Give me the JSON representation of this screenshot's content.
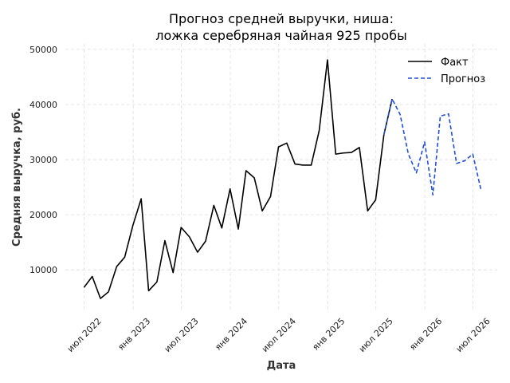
{
  "chart_data": {
    "type": "line",
    "title_line1": "Прогноз средней выручки, ниша:",
    "title_line2": "ложка серебряная чайная 925 пробы",
    "xlabel": "Дата",
    "ylabel": "Средняя выручка, руб.",
    "ylim": [
      2500,
      51000
    ],
    "yticks": [
      10000,
      20000,
      30000,
      40000,
      50000
    ],
    "xlim": [
      "2022-04-21",
      "2026-09-30"
    ],
    "xticks": [
      {
        "date": "2022-07-01",
        "label": "июл 2022"
      },
      {
        "date": "2023-01-01",
        "label": "янв 2023"
      },
      {
        "date": "2023-07-01",
        "label": "июл 2023"
      },
      {
        "date": "2024-01-01",
        "label": "янв 2024"
      },
      {
        "date": "2024-07-01",
        "label": "июл 2024"
      },
      {
        "date": "2025-01-01",
        "label": "янв 2025"
      },
      {
        "date": "2025-07-01",
        "label": "июл 2025"
      },
      {
        "date": "2026-01-01",
        "label": "янв 2026"
      },
      {
        "date": "2026-07-01",
        "label": "июл 2026"
      }
    ],
    "grid": true,
    "legend_position": "top-right",
    "series": [
      {
        "name": "Факт",
        "style": "solid",
        "color": "#000000",
        "x": [
          "2022-06-30",
          "2022-07-31",
          "2022-08-31",
          "2022-09-30",
          "2022-10-31",
          "2022-11-30",
          "2022-12-31",
          "2023-01-31",
          "2023-02-28",
          "2023-03-31",
          "2023-04-30",
          "2023-05-31",
          "2023-06-30",
          "2023-07-31",
          "2023-08-31",
          "2023-09-30",
          "2023-10-31",
          "2023-11-30",
          "2023-12-31",
          "2024-01-31",
          "2024-02-29",
          "2024-03-31",
          "2024-04-30",
          "2024-05-31",
          "2024-06-30",
          "2024-07-31",
          "2024-08-31",
          "2024-09-30",
          "2024-10-31",
          "2024-11-30",
          "2024-12-31",
          "2025-01-31",
          "2025-02-28",
          "2025-03-31",
          "2025-04-30",
          "2025-05-31",
          "2025-06-30",
          "2025-07-31",
          "2025-08-31"
        ],
        "values": [
          6800,
          8800,
          4800,
          6000,
          10600,
          12300,
          18100,
          22900,
          6200,
          7800,
          15300,
          9500,
          17700,
          16000,
          13200,
          15200,
          21700,
          17600,
          24700,
          17400,
          28000,
          26700,
          20700,
          23300,
          32300,
          33000,
          29200,
          29000,
          29000,
          35300,
          48100,
          31000,
          31200,
          31300,
          32200,
          20700,
          22700,
          34500,
          41000
        ]
      },
      {
        "name": "Прогноз",
        "style": "dashed",
        "color": "#1f4fd8",
        "x": [
          "2025-07-31",
          "2025-08-31",
          "2025-09-30",
          "2025-10-31",
          "2025-11-30",
          "2025-12-31",
          "2026-01-31",
          "2026-02-28",
          "2026-03-31",
          "2026-04-30",
          "2026-05-31",
          "2026-06-30",
          "2026-07-31"
        ],
        "values": [
          34500,
          41000,
          38200,
          31000,
          27600,
          33200,
          23600,
          37900,
          38300,
          29300,
          29800,
          31000,
          24500
        ]
      }
    ]
  }
}
